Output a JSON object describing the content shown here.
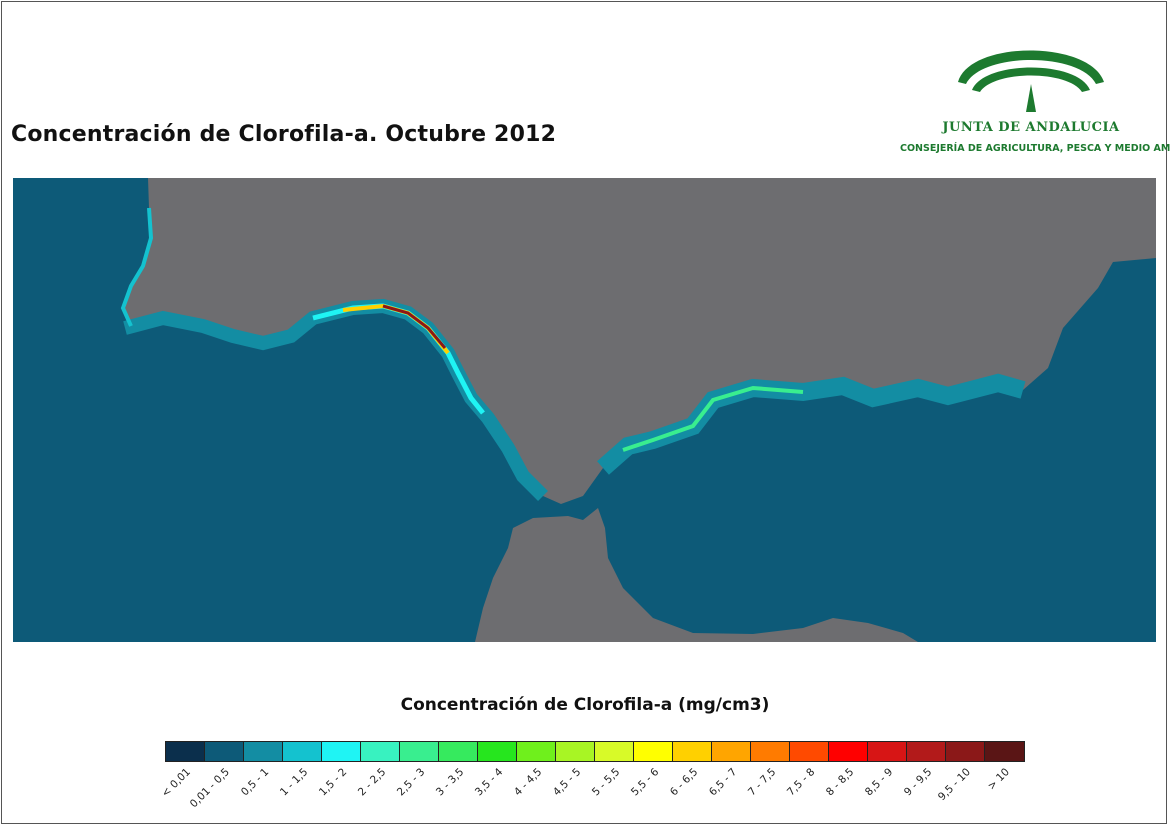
{
  "title": "Concentración de Clorofila-a. Octubre 2012",
  "logo": {
    "name": "JUNTA DE ANDALUCIA",
    "department": "CONSEJERÍA DE AGRICULTURA, PESCA Y MEDIO AMBIENTE",
    "color": "#1d7a2f"
  },
  "map": {
    "land_color": "#6d6d70",
    "sea_color": "#0d5a78"
  },
  "legend": {
    "title": "Concentración de Clorofila-a (mg/cm3)",
    "classes": [
      {
        "label": "< 0,01",
        "color": "#0b2f4c"
      },
      {
        "label": "0,01 - 0,5",
        "color": "#0d5a78"
      },
      {
        "label": "0,5 - 1",
        "color": "#138da3"
      },
      {
        "label": "1 - 1,5",
        "color": "#14c2cf"
      },
      {
        "label": "1,5 - 2",
        "color": "#1ff4f4"
      },
      {
        "label": "2 - 2,5",
        "color": "#38f2c0"
      },
      {
        "label": "2,5 - 3",
        "color": "#39ee8f"
      },
      {
        "label": "3 - 3,5",
        "color": "#36ea5e"
      },
      {
        "label": "3,5 - 4",
        "color": "#26e61e"
      },
      {
        "label": "4 - 4,5",
        "color": "#6ff01c"
      },
      {
        "label": "4,5 - 5",
        "color": "#a8f524"
      },
      {
        "label": "5 - 5,5",
        "color": "#d8fa28"
      },
      {
        "label": "5,5 - 6",
        "color": "#ffff00"
      },
      {
        "label": "6 - 6,5",
        "color": "#ffd000"
      },
      {
        "label": "6,5 - 7",
        "color": "#ffa500"
      },
      {
        "label": "7 - 7,5",
        "color": "#ff7b00"
      },
      {
        "label": "7,5 - 8",
        "color": "#ff4a00"
      },
      {
        "label": "8 - 8,5",
        "color": "#ff0000"
      },
      {
        "label": "8,5 - 9",
        "color": "#d71515"
      },
      {
        "label": "9 - 9,5",
        "color": "#b21a1a"
      },
      {
        "label": "9,5 - 10",
        "color": "#8b1818"
      },
      {
        "label": "> 10",
        "color": "#5a1515"
      }
    ]
  }
}
